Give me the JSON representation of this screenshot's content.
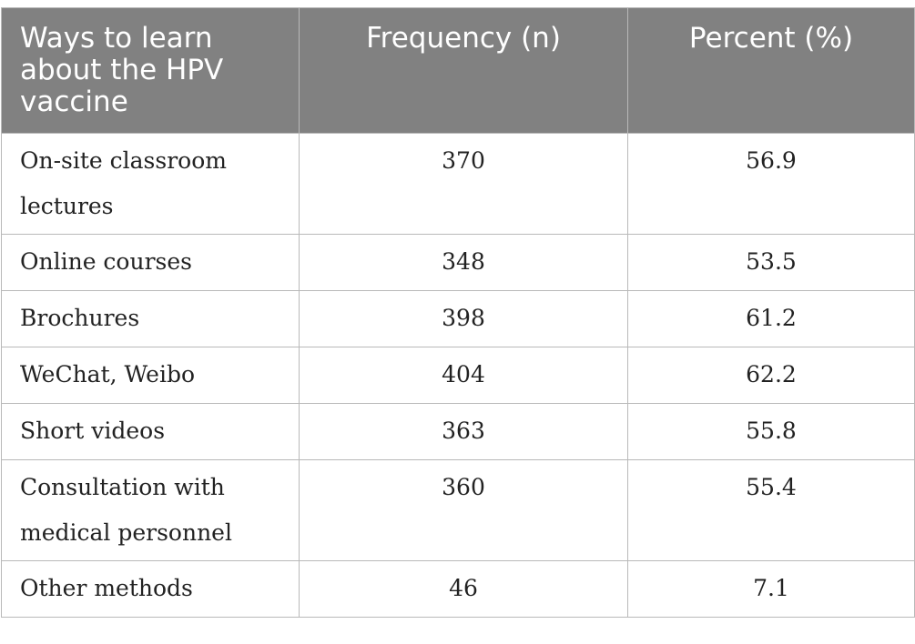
{
  "table": {
    "headers": [
      "Ways to learn about the HPV vaccine",
      "Frequency (n)",
      "Percent (%)"
    ],
    "rows": [
      {
        "label": "On-site classroom lectures",
        "frequency": "370",
        "percent": "56.9"
      },
      {
        "label": "Online courses",
        "frequency": "348",
        "percent": "53.5"
      },
      {
        "label": "Brochures",
        "frequency": "398",
        "percent": "61.2"
      },
      {
        "label": "WeChat, Weibo",
        "frequency": "404",
        "percent": "62.2"
      },
      {
        "label": "Short videos",
        "frequency": "363",
        "percent": "55.8"
      },
      {
        "label": "Consultation with medical personnel",
        "frequency": "360",
        "percent": "55.4"
      },
      {
        "label": "Other methods",
        "frequency": "46",
        "percent": "7.1"
      }
    ]
  },
  "colors": {
    "header_background": "#818181",
    "header_text": "#ffffff",
    "border": "#b9b9b9"
  }
}
